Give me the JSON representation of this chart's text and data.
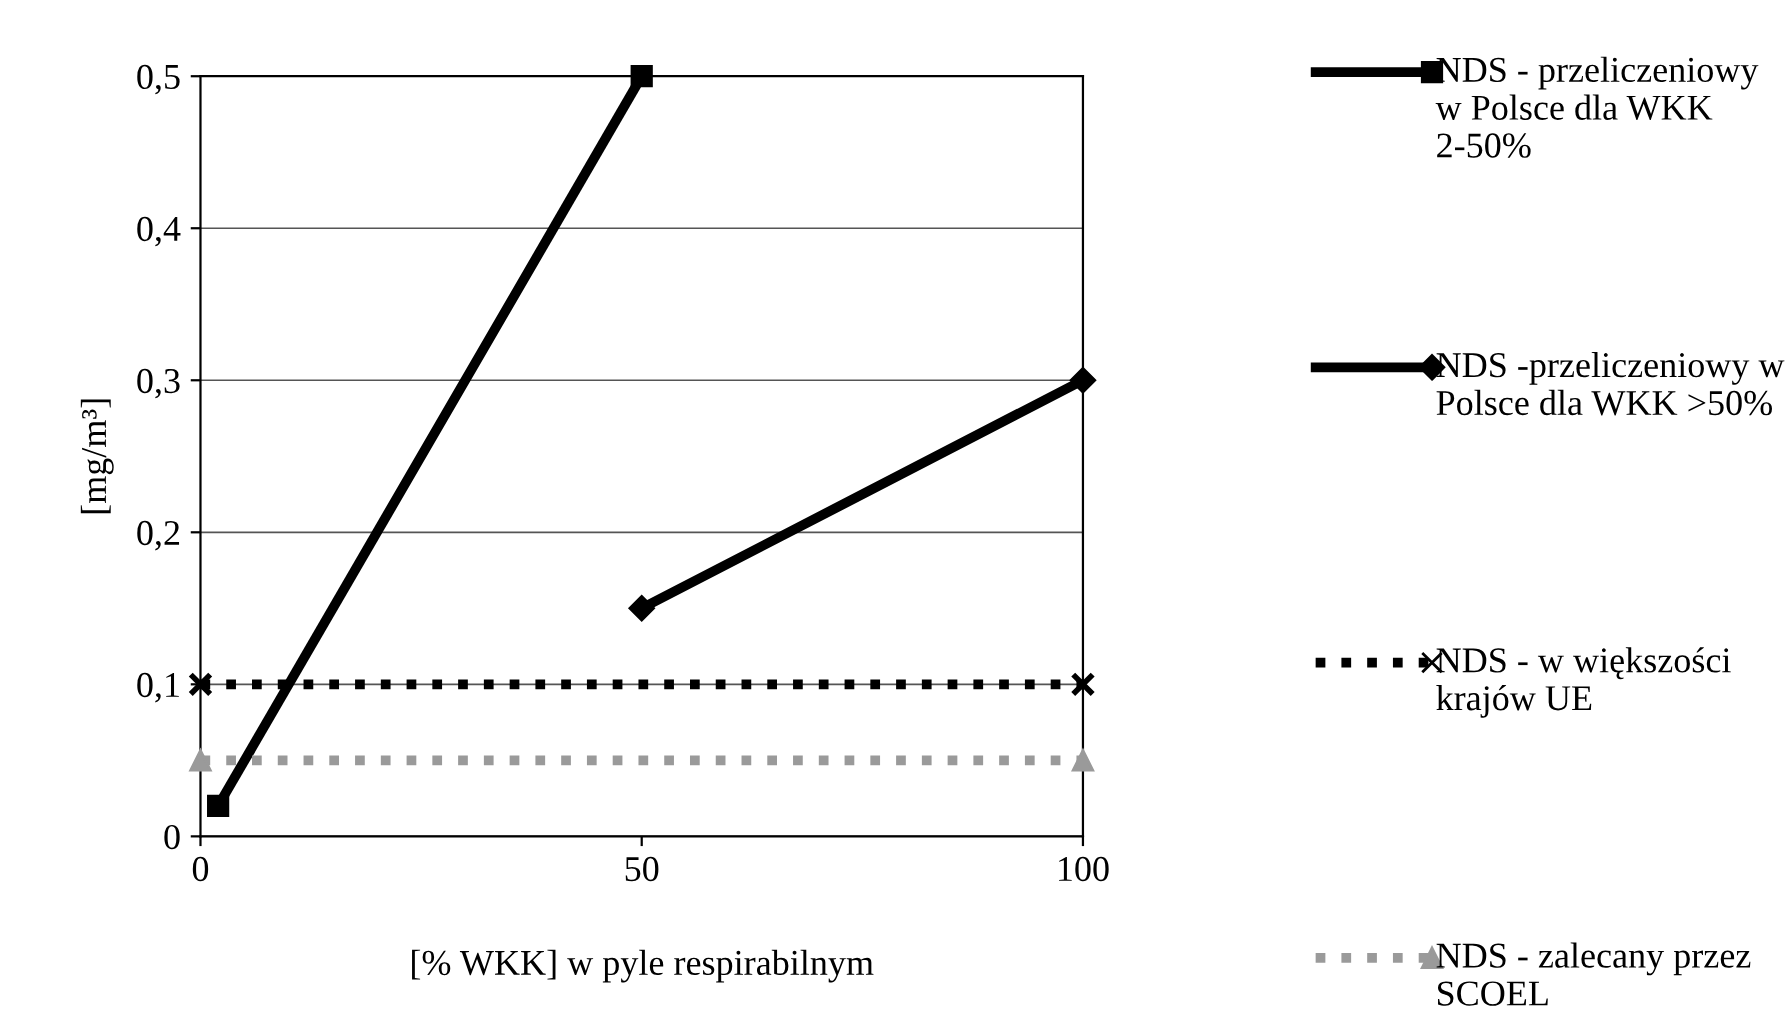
{
  "chart_data": {
    "type": "line",
    "xlabel": "[% WKK] w pyle respirabilnym",
    "ylabel": "[mg/m³]",
    "xlim": [
      0,
      100
    ],
    "xticks": [
      0,
      50,
      100
    ],
    "ylim": [
      0,
      0.5
    ],
    "yticks": [
      {
        "value": 0,
        "label": "0"
      },
      {
        "value": 0.1,
        "label": "0,1"
      },
      {
        "value": 0.2,
        "label": "0,2"
      },
      {
        "value": 0.3,
        "label": "0,3"
      },
      {
        "value": 0.4,
        "label": "0,4"
      },
      {
        "value": 0.5,
        "label": "0,5"
      }
    ],
    "grid": "y",
    "legend": "right",
    "series": [
      {
        "name": "NDS - przeliczeniowy w Polsce dla WKK 2-50%",
        "color": "#000000",
        "x": [
          2,
          50
        ],
        "values": [
          0.02,
          0.5
        ],
        "marker": "square",
        "line_style": "solid"
      },
      {
        "name": "NDS -przeliczeniowy w Polsce dla WKK >50%",
        "color": "#000000",
        "x": [
          50,
          100
        ],
        "values": [
          0.15,
          0.3
        ],
        "marker": "diamond",
        "line_style": "solid"
      },
      {
        "name": "NDS - w większości krajów UE",
        "color": "#000000",
        "x": [
          0,
          100
        ],
        "values": [
          0.1,
          0.1
        ],
        "marker": "cross",
        "line_style": "dotted"
      },
      {
        "name": "NDS - zalecany przez SCOEL",
        "color": "#9a9a9a",
        "x": [
          0,
          100
        ],
        "values": [
          0.05,
          0.05
        ],
        "marker": "triangle",
        "line_style": "dotted"
      }
    ]
  }
}
